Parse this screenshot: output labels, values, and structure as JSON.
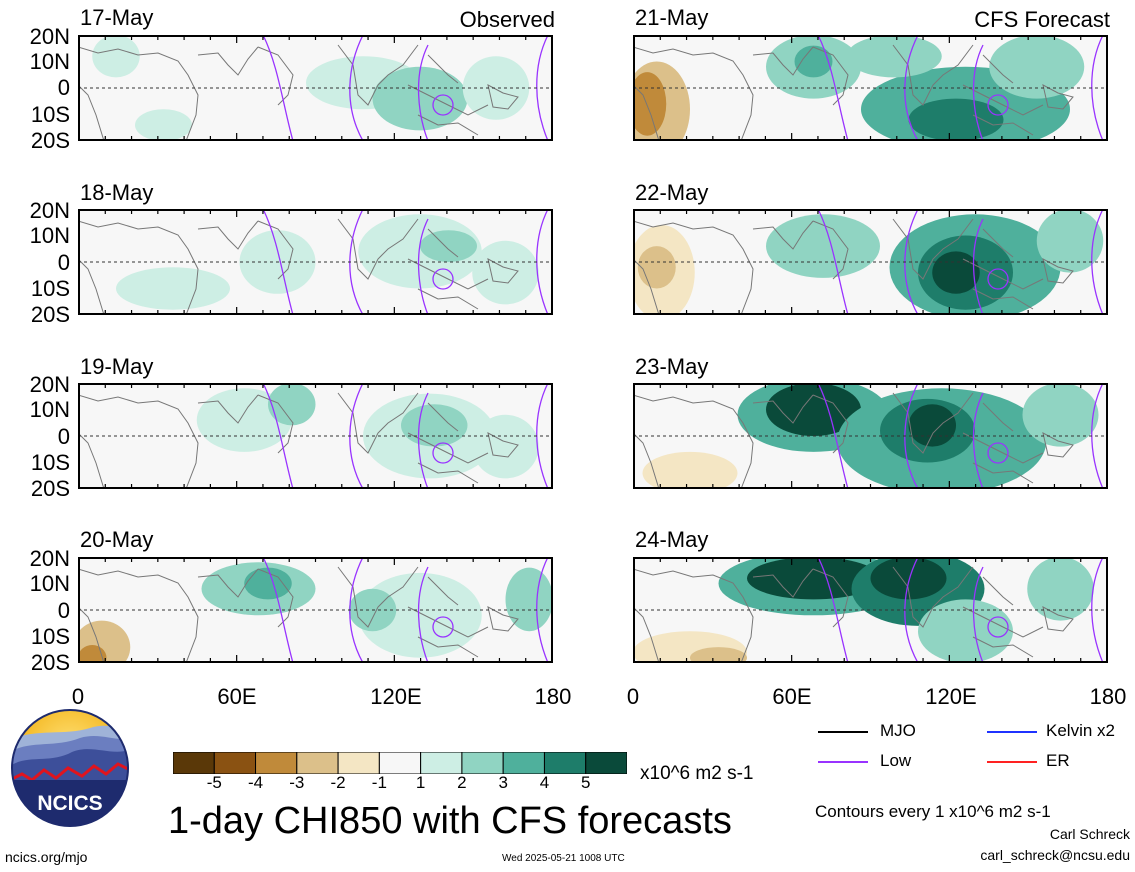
{
  "figure": {
    "main_title": "1-day CHI850 with CFS forecasts",
    "timestamp": "Wed 2025-05-21 1008 UTC",
    "site": "ncics.org/mjo",
    "author": "Carl Schreck",
    "email": "carl_schreck@ncsu.edu",
    "contour_note": "Contours every 1 x10^6 m2 s-1",
    "logo_text": "NCICS"
  },
  "columns": {
    "left_label": "Observed",
    "right_label": "CFS Forecast"
  },
  "panels_left": [
    {
      "date": "17-May"
    },
    {
      "date": "18-May"
    },
    {
      "date": "19-May"
    },
    {
      "date": "20-May"
    }
  ],
  "panels_right": [
    {
      "date": "21-May"
    },
    {
      "date": "22-May"
    },
    {
      "date": "23-May"
    },
    {
      "date": "24-May"
    }
  ],
  "axes": {
    "lat_ticks": [
      "20N",
      "10N",
      "0",
      "10S",
      "20S"
    ],
    "lon_ticks": [
      "0",
      "60E",
      "120E",
      "180"
    ]
  },
  "colorbar": {
    "units": "x10^6 m2 s-1",
    "labels": [
      "-5",
      "-4",
      "-3",
      "-2",
      "-1",
      "1",
      "2",
      "3",
      "4",
      "5"
    ],
    "colors": [
      "#5a3808",
      "#8a5212",
      "#c08a3a",
      "#dcc08a",
      "#f4e6c4",
      "#f7f7f7",
      "#cdeee4",
      "#90d4c2",
      "#4fb09c",
      "#1e7d6a",
      "#0a4a3a"
    ]
  },
  "legend": {
    "items": [
      {
        "label": "MJO",
        "color": "#000000"
      },
      {
        "label": "Kelvin x2",
        "color": "#1f33ff"
      },
      {
        "label": "Low",
        "color": "#9933ff"
      },
      {
        "label": "ER",
        "color": "#ff2222"
      }
    ]
  }
}
